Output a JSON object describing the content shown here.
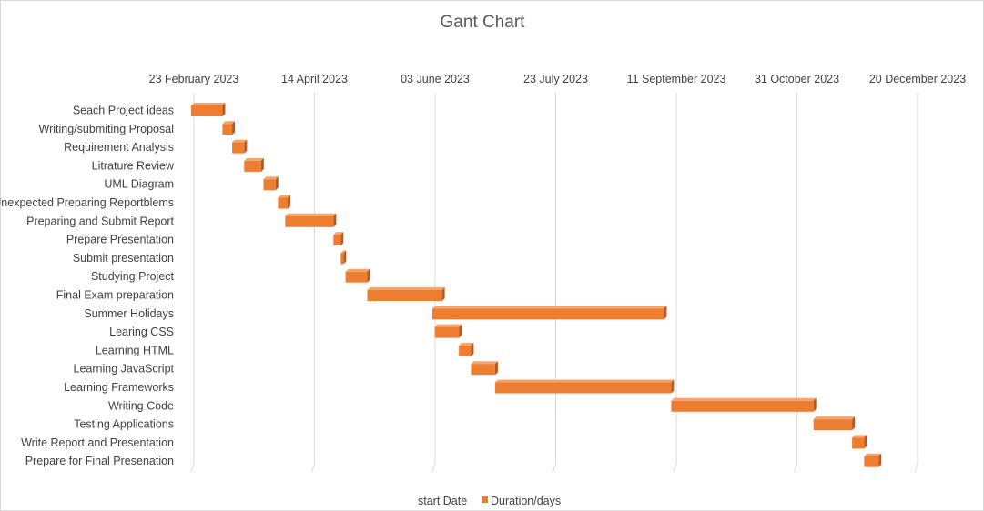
{
  "chart_data": {
    "type": "bar",
    "orientation": "horizontal-stacked",
    "title": "Gant Chart",
    "x_ticks": [
      "23 February 2023",
      "14 April 2023",
      "03 June 2023",
      "23 July 2023",
      "11 September 2023",
      "31 October 2023",
      "20 December 2023"
    ],
    "xlim": [
      "2023-02-23",
      "2023-12-20"
    ],
    "grid": "vertical",
    "legend_position": "bottom",
    "series": [
      {
        "name": "start Date",
        "visible": false
      },
      {
        "name": "Duration/days",
        "color": "#ED7D31"
      }
    ],
    "categories": [
      "Seach Project ideas",
      "Writing/submiting Proposal",
      "Requirement Analysis",
      "Litrature Review",
      "UML Diagram",
      "Unexpected Preparing Reportblems",
      "Preparing and Submit Report",
      "Prepare Presentation",
      "Submit presentation",
      "Studying Project ",
      "Final Exam preparation",
      "Summer Holidays",
      "Learing CSS",
      "Learning HTML",
      "Learning JavaScript",
      "Learning Frameworks",
      "Writing Code",
      "Testing Applications",
      "Write Report and Presentation",
      "Prepare for Final Presenation"
    ],
    "start_dates": [
      "2023-02-23",
      "2023-03-08",
      "2023-03-12",
      "2023-03-17",
      "2023-03-25",
      "2023-03-31",
      "2023-04-03",
      "2023-04-23",
      "2023-04-26",
      "2023-04-28",
      "2023-05-07",
      "2023-06-03",
      "2023-06-04",
      "2023-06-14",
      "2023-06-19",
      "2023-06-29",
      "2023-09-10",
      "2023-11-08",
      "2023-11-24",
      "2023-11-29"
    ],
    "durations_days": [
      13,
      4,
      5,
      7,
      5,
      4,
      20,
      3,
      1,
      9,
      31,
      96,
      10,
      5,
      10,
      73,
      59,
      16,
      5,
      6
    ]
  }
}
